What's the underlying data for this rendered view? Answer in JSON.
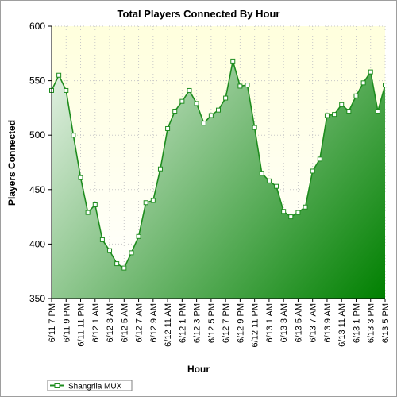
{
  "chart_data": {
    "type": "area",
    "title": "Total Players Connected By Hour",
    "xlabel": "Hour",
    "ylabel": "Players Connected",
    "ylim": [
      350,
      600
    ],
    "yticks": [
      350,
      400,
      450,
      500,
      550,
      600
    ],
    "grid": true,
    "legend_position": "bottom-left",
    "x_tick_labels": [
      "6/11 7 PM",
      "6/11 9 PM",
      "6/11 11 PM",
      "6/12 1 AM",
      "6/12 3 AM",
      "6/12 5 AM",
      "6/12 7 AM",
      "6/12 9 AM",
      "6/12 11 AM",
      "6/12 1 PM",
      "6/12 3 PM",
      "6/12 5 PM",
      "6/12 7 PM",
      "6/12 9 PM",
      "6/12 11 PM",
      "6/13 1 AM",
      "6/13 3 AM",
      "6/13 5 AM",
      "6/13 7 AM",
      "6/13 9 AM",
      "6/13 11 AM",
      "6/13 1 PM",
      "6/13 3 PM",
      "6/13 5 PM"
    ],
    "series": [
      {
        "name": "Shangrila MUX",
        "color": "#1e8c1e",
        "values": [
          541,
          555,
          541,
          500,
          461,
          429,
          436,
          404,
          394,
          382,
          378,
          392,
          407,
          438,
          440,
          469,
          506,
          522,
          531,
          541,
          529,
          511,
          518,
          523,
          534,
          568,
          545,
          546,
          507,
          465,
          458,
          453,
          430,
          425,
          429,
          434,
          467,
          478,
          518,
          519,
          528,
          522,
          536,
          548,
          558,
          522,
          546
        ]
      }
    ]
  },
  "colors": {
    "plot_bg_top": "#ffffdd",
    "plot_bg_bottom": "#ffffff",
    "fill_light": "#f2f8f2",
    "fill_dark": "#008000",
    "line": "#1e8c1e",
    "grid": "#c8c8c8"
  }
}
